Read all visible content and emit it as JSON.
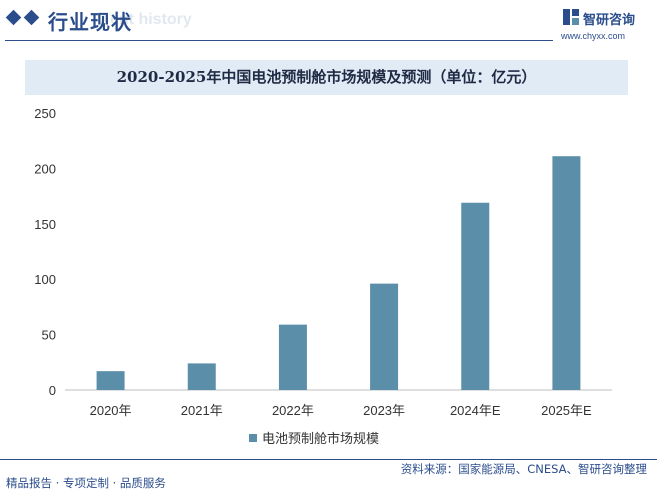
{
  "header": {
    "title": "行业现状",
    "ghost_text": "ent history",
    "brand": "智研咨询",
    "site": "www.chyxx.com"
  },
  "footer": {
    "left": "精品报告 · 专项定制 · 品质服务",
    "right": "资料来源：国家能源局、CNESA、智研咨询整理"
  },
  "colors": {
    "accent": "#2b4d8c",
    "bar": "#5b8ea8",
    "title_band": "#e1ebf5"
  },
  "chart_data": {
    "type": "bar",
    "title": "2020-2025年中国电池预制舱市场规模及预测（单位：亿元）",
    "categories": [
      "2020年",
      "2021年",
      "2022年",
      "2023年",
      "2024年E",
      "2025年E"
    ],
    "series": [
      {
        "name": "电池预制舱市场规模",
        "values": [
          17,
          24,
          59,
          96,
          169,
          211
        ]
      }
    ],
    "xlabel": "",
    "ylabel": "",
    "ylim": [
      0,
      250
    ],
    "yticks": [
      0,
      50,
      100,
      150,
      200,
      250
    ],
    "grid": false,
    "legend": "bottom"
  }
}
